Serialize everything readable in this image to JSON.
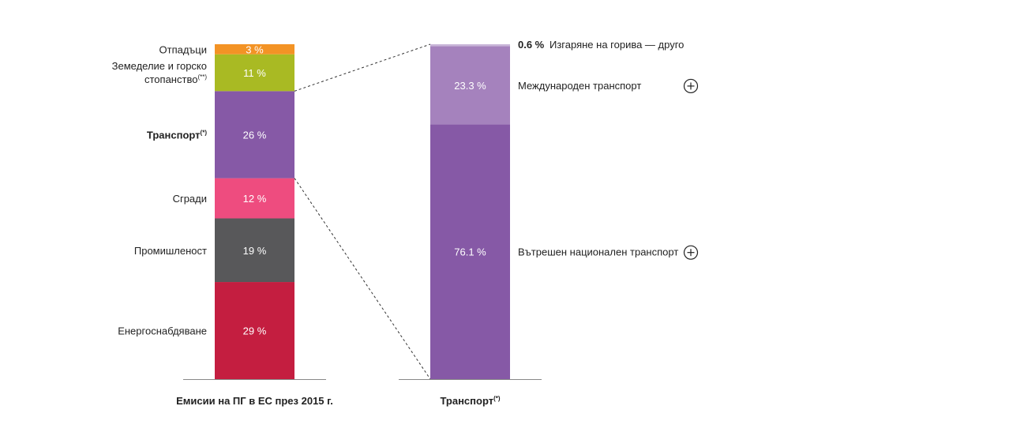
{
  "chart_data": [
    {
      "type": "bar",
      "stacked": true,
      "xlabel": "Емисии на ПГ в ЕС през 2015 г.",
      "unit": "%",
      "segments": [
        {
          "name": "Енергоснабдяване",
          "value": 29,
          "label": "29 %",
          "color": "#c41e40"
        },
        {
          "name": "Промишленост",
          "value": 19,
          "label": "19 %",
          "color": "#58585a"
        },
        {
          "name": "Сгради",
          "value": 12,
          "label": "12 %",
          "color": "#ee4c7f"
        },
        {
          "name": "Транспорт",
          "name_sup": "(*)",
          "bold": true,
          "value": 26,
          "label": "26 %",
          "color": "#8659a6"
        },
        {
          "name_lines": [
            "Земеделие и горско",
            "стопанство"
          ],
          "name_sup": "(**)",
          "value": 11,
          "label": "11 %",
          "color": "#a9ba23"
        },
        {
          "name": "Отпадъци",
          "value": 3,
          "label": "3 %",
          "color": "#f39325"
        }
      ]
    },
    {
      "type": "bar",
      "stacked": true,
      "xlabel": "Транспорт",
      "xlabel_sup": "(*)",
      "unit": "%",
      "segments": [
        {
          "name": "Вътрешен национален транспорт",
          "value": 76.1,
          "label": "76.1 %",
          "color": "#8659a6",
          "expandable": true
        },
        {
          "name": "Международен транспорт",
          "value": 23.3,
          "label": "23.3 %",
          "color": "#a582bd",
          "expandable": true
        },
        {
          "name": "Изгаряне на горива — друго",
          "value": 0.6,
          "label": "0.6 %",
          "color": "#c9b6d8",
          "outside": true
        }
      ]
    }
  ]
}
